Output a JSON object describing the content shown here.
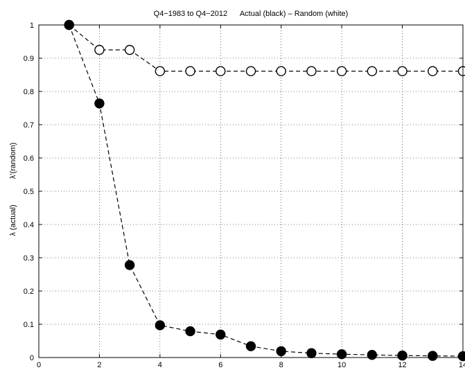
{
  "chart_data": {
    "type": "line",
    "title": "Q4−1983 to Q4−2012      Actual (black) – Random (white)",
    "xlabel": "",
    "ylabel_actual": "λ (actual)",
    "ylabel_random": "λ’(random)",
    "xlim": [
      0,
      14
    ],
    "ylim": [
      0,
      1
    ],
    "xticks": [
      0,
      2,
      4,
      6,
      8,
      10,
      12,
      14
    ],
    "xtick_labels": [
      "0",
      "2",
      "4",
      "6",
      "8",
      "10",
      "12",
      "14"
    ],
    "yticks": [
      0,
      0.1,
      0.2,
      0.3,
      0.4,
      0.5,
      0.6,
      0.7,
      0.8,
      0.9,
      1
    ],
    "ytick_labels": [
      "0",
      "0.1",
      "0.2",
      "0.3",
      "0.4",
      "0.5",
      "0.6",
      "0.7",
      "0.8",
      "0.9",
      "1"
    ],
    "grid": true,
    "series": [
      {
        "key": "actual",
        "marker": "filled-circle",
        "line": "dashed",
        "color": "#000000",
        "x": [
          1,
          2,
          3,
          4,
          5,
          6,
          7,
          8,
          9,
          10,
          11,
          12,
          13,
          14
        ],
        "values": [
          1.0,
          0.764,
          0.278,
          0.097,
          0.079,
          0.069,
          0.034,
          0.019,
          0.013,
          0.01,
          0.008,
          0.006,
          0.005,
          0.004
        ]
      },
      {
        "key": "random",
        "marker": "open-circle",
        "line": "dashed",
        "color": "#000000",
        "x": [
          1,
          2,
          3,
          4,
          5,
          6,
          7,
          8,
          9,
          10,
          11,
          12,
          13,
          14
        ],
        "values": [
          1.0,
          0.925,
          0.925,
          0.861,
          0.861,
          0.861,
          0.861,
          0.861,
          0.861,
          0.861,
          0.861,
          0.861,
          0.861,
          0.861
        ]
      }
    ]
  }
}
